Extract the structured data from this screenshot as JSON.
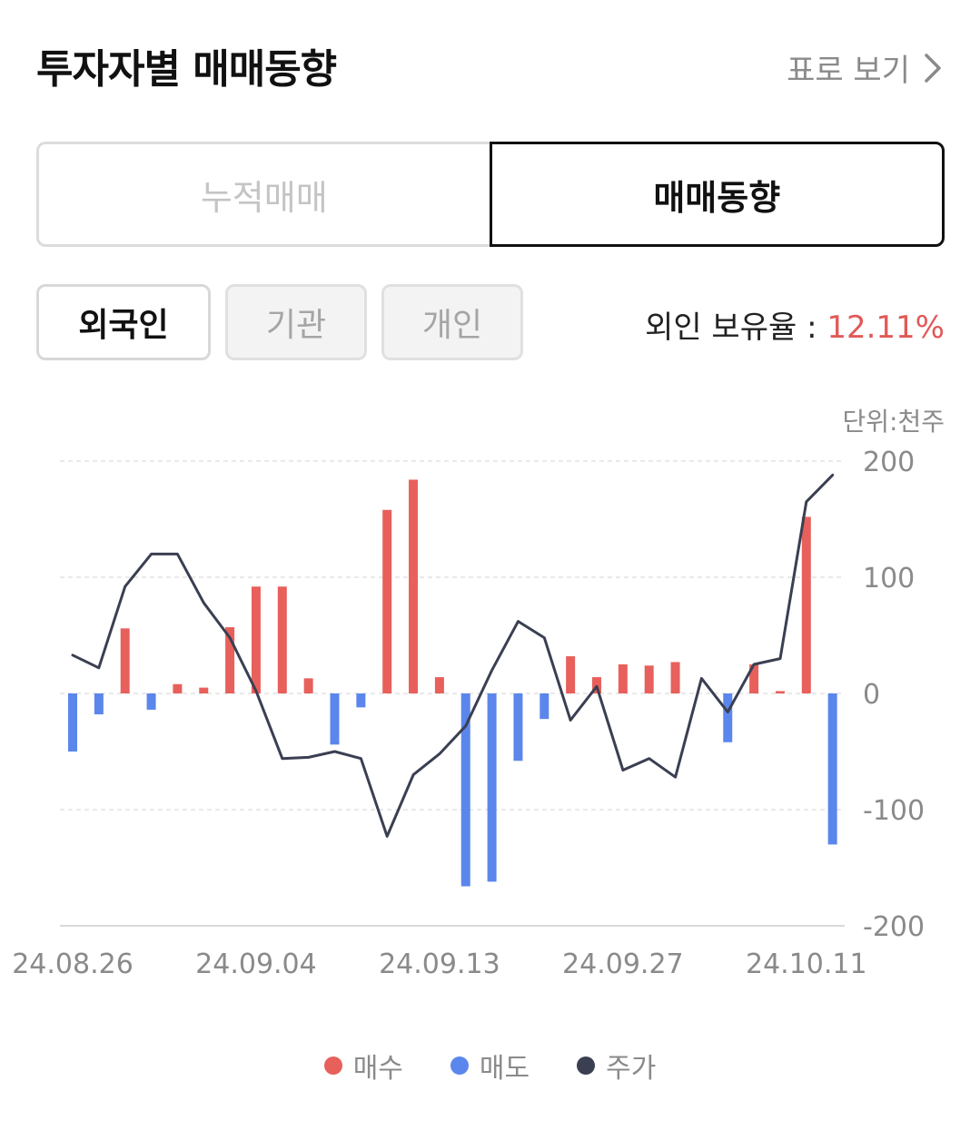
{
  "header": {
    "title": "투자자별 매매동향",
    "view_table_label": "표로 보기"
  },
  "segment": {
    "options": [
      "누적매매",
      "매매동향"
    ],
    "selected": "매매동향"
  },
  "investor_tabs": {
    "options": [
      "외국인",
      "기관",
      "개인"
    ],
    "selected": "외국인"
  },
  "ownership": {
    "label": "외인 보유율 : ",
    "value": "12.11%"
  },
  "unit_label": "단위:천주",
  "legend": [
    {
      "label": "매수",
      "color": "#e8605b"
    },
    {
      "label": "매도",
      "color": "#5b86ec"
    },
    {
      "label": "주가",
      "color": "#3a3f52"
    }
  ],
  "chart_data": {
    "type": "bar",
    "ylim": [
      -200,
      200
    ],
    "yticks": [
      200,
      100,
      0,
      -100,
      -200
    ],
    "xtick_labels": [
      "24.08.26",
      "24.09.04",
      "24.09.13",
      "24.09.27",
      "24.10.11"
    ],
    "xtick_indices": [
      0,
      7,
      14,
      21,
      28
    ],
    "colors": {
      "buy": "#e8605b",
      "sell": "#5b86ec",
      "price": "#3a3f52"
    },
    "series": [
      {
        "name": "매수",
        "kind": "bar",
        "values": [
          -50,
          -18,
          56,
          -14,
          8,
          5,
          57,
          92,
          92,
          13,
          -44,
          -12,
          158,
          184,
          14,
          -166,
          -162,
          -58,
          -22,
          32,
          14,
          25,
          24,
          27,
          0,
          -42,
          25,
          2,
          152,
          -130
        ]
      },
      {
        "name": "주가",
        "kind": "line",
        "values": [
          33,
          22,
          92,
          120,
          120,
          78,
          48,
          2,
          -56,
          -55,
          -50,
          -56,
          -123,
          -70,
          -52,
          -28,
          20,
          62,
          48,
          -23,
          6,
          -66,
          -56,
          -72,
          13,
          -16,
          25,
          30,
          165,
          188
        ]
      }
    ]
  }
}
